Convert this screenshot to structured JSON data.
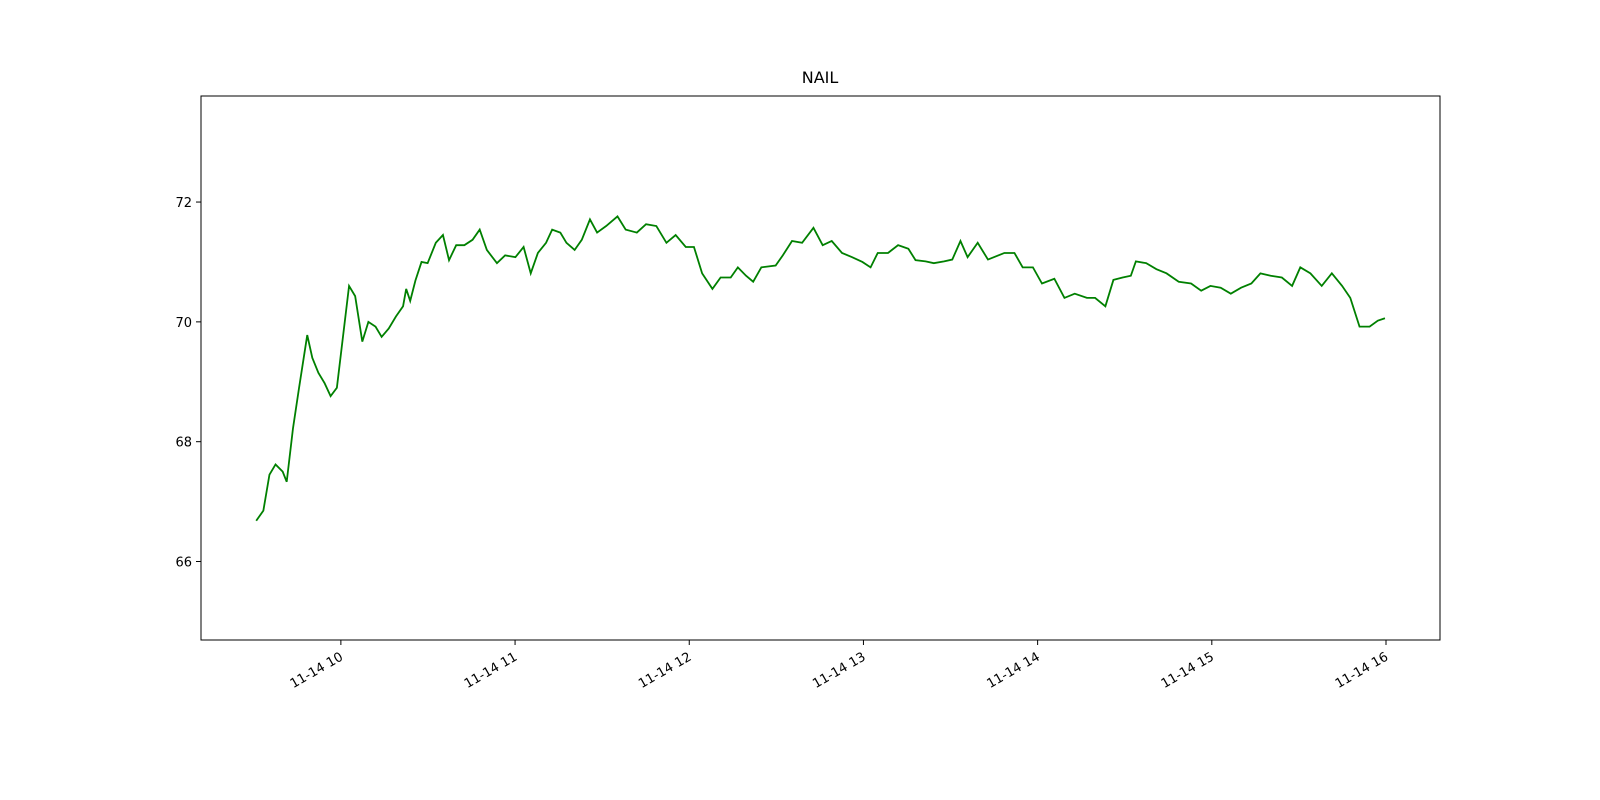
{
  "chart_data": {
    "type": "line",
    "title": "NAIL",
    "x": [
      9.514,
      9.555,
      9.59,
      9.625,
      9.666,
      9.689,
      9.725,
      9.76,
      9.807,
      9.836,
      9.871,
      9.906,
      9.941,
      9.977,
      10.012,
      10.047,
      10.082,
      10.123,
      10.158,
      10.199,
      10.234,
      10.275,
      10.316,
      10.357,
      10.375,
      10.398,
      10.428,
      10.463,
      10.498,
      10.545,
      10.586,
      10.621,
      10.662,
      10.709,
      10.756,
      10.797,
      10.838,
      10.896,
      10.943,
      11.002,
      11.049,
      11.09,
      11.131,
      11.178,
      11.213,
      11.26,
      11.295,
      11.342,
      11.383,
      11.43,
      11.471,
      11.523,
      11.588,
      11.635,
      11.699,
      11.752,
      11.811,
      11.869,
      11.922,
      11.98,
      12.027,
      12.074,
      12.133,
      12.18,
      12.238,
      12.279,
      12.326,
      12.367,
      12.414,
      12.496,
      12.537,
      12.59,
      12.648,
      12.713,
      12.766,
      12.818,
      12.877,
      12.935,
      12.994,
      13.041,
      13.082,
      13.141,
      13.199,
      13.258,
      13.299,
      13.357,
      13.404,
      13.463,
      13.51,
      13.557,
      13.598,
      13.656,
      13.715,
      13.809,
      13.867,
      13.914,
      13.973,
      14.025,
      14.096,
      14.154,
      14.213,
      14.283,
      14.33,
      14.389,
      14.435,
      14.488,
      14.535,
      14.564,
      14.623,
      14.682,
      14.74,
      14.81,
      14.881,
      14.939,
      14.992,
      15.051,
      15.109,
      15.168,
      15.227,
      15.279,
      15.338,
      15.402,
      15.461,
      15.508,
      15.566,
      15.631,
      15.689,
      15.748,
      15.795,
      15.848,
      15.906,
      15.953,
      15.994
    ],
    "series": [
      {
        "name": "NAIL",
        "color": "#008000",
        "values": [
          66.68,
          66.85,
          67.45,
          67.62,
          67.5,
          67.33,
          68.22,
          68.9,
          69.78,
          69.4,
          69.15,
          68.98,
          68.76,
          68.9,
          69.75,
          70.6,
          70.43,
          69.67,
          70.0,
          69.92,
          69.75,
          69.89,
          70.09,
          70.26,
          70.55,
          70.35,
          70.69,
          71.0,
          70.98,
          71.32,
          71.45,
          71.03,
          71.28,
          71.28,
          71.37,
          71.54,
          71.2,
          70.98,
          71.11,
          71.08,
          71.25,
          70.81,
          71.15,
          71.32,
          71.54,
          71.49,
          71.32,
          71.2,
          71.37,
          71.71,
          71.49,
          71.6,
          71.76,
          71.54,
          71.49,
          71.63,
          71.6,
          71.32,
          71.45,
          71.25,
          71.25,
          70.81,
          70.55,
          70.74,
          70.74,
          70.91,
          70.77,
          70.67,
          70.91,
          70.94,
          71.11,
          71.35,
          71.32,
          71.57,
          71.28,
          71.35,
          71.15,
          71.08,
          71.0,
          70.91,
          71.15,
          71.15,
          71.28,
          71.22,
          71.03,
          71.01,
          70.98,
          71.01,
          71.04,
          71.35,
          71.08,
          71.32,
          71.04,
          71.15,
          71.15,
          70.91,
          70.91,
          70.64,
          70.72,
          70.4,
          70.47,
          70.4,
          70.4,
          70.26,
          70.7,
          70.74,
          70.77,
          71.01,
          70.98,
          70.88,
          70.81,
          70.67,
          70.64,
          70.52,
          70.6,
          70.57,
          70.47,
          70.57,
          70.64,
          70.81,
          70.77,
          70.74,
          70.6,
          70.91,
          70.81,
          70.6,
          70.81,
          70.6,
          70.4,
          69.92,
          69.92,
          70.02,
          70.06
        ]
      }
    ],
    "xlim": [
      9.197,
      16.31
    ],
    "xticks": [
      {
        "value": 10,
        "label": "11-14 10"
      },
      {
        "value": 11,
        "label": "11-14 11"
      },
      {
        "value": 12,
        "label": "11-14 12"
      },
      {
        "value": 13,
        "label": "11-14 13"
      },
      {
        "value": 14,
        "label": "11-14 14"
      },
      {
        "value": 15,
        "label": "11-14 15"
      },
      {
        "value": 16,
        "label": "11-14 16"
      }
    ],
    "ylim": [
      64.69,
      73.77
    ],
    "yticks": [
      66,
      68,
      70,
      72
    ],
    "grid": false
  }
}
